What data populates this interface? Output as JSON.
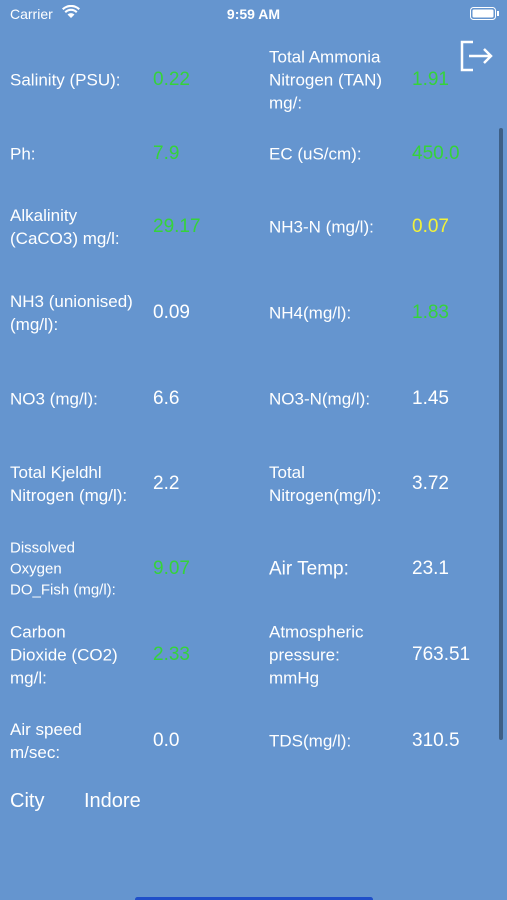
{
  "status_bar": {
    "carrier": "Carrier",
    "time": "9:59 AM"
  },
  "rows": [
    [
      {
        "label": [
          "Salinity (PSU):"
        ],
        "value": "0.22",
        "color": "#35d33a"
      },
      {
        "label": [
          "Total Ammonia",
          "Nitrogen (TAN)",
          "mg/:"
        ],
        "value": "1.91",
        "color": "#35d33a"
      }
    ],
    [
      {
        "label": [
          "Ph:"
        ],
        "value": "7.9",
        "color": "#35d33a"
      },
      {
        "label": [
          "EC (uS/cm):"
        ],
        "value": "450.0",
        "color": "#35d33a"
      }
    ],
    [
      {
        "label": [
          "Alkalinity",
          "(CaCO3) mg/l:"
        ],
        "value": "29.17",
        "color": "#35d33a"
      },
      {
        "label": [
          "NH3-N (mg/l):"
        ],
        "value": "0.07",
        "color": "#f2f23a"
      }
    ],
    [
      {
        "label": [
          "NH3 (unionised)",
          "(mg/l):"
        ],
        "value": "0.09",
        "color": "#ffffff"
      },
      {
        "label": [
          "NH4(mg/l):"
        ],
        "value": "1.83",
        "color": "#35d33a"
      }
    ],
    [
      {
        "label": [
          "NO3 (mg/l):"
        ],
        "value": "6.6",
        "color": "#ffffff"
      },
      {
        "label": [
          "NO3-N(mg/l):"
        ],
        "value": "1.45",
        "color": "#ffffff"
      }
    ],
    [
      {
        "label": [
          "Total Kjeldhl",
          "Nitrogen (mg/l):"
        ],
        "value": "2.2",
        "color": "#ffffff"
      },
      {
        "label": [
          "Total",
          "Nitrogen(mg/l):"
        ],
        "value": "3.72",
        "color": "#ffffff"
      }
    ],
    [
      {
        "label": [
          "Dissolved",
          "Oxygen",
          "DO_Fish (mg/l):"
        ],
        "value": "9.07",
        "color": "#35d33a"
      },
      {
        "label": [
          "Air Temp:"
        ],
        "value": "23.1",
        "color": "#ffffff"
      }
    ],
    [
      {
        "label": [
          "Carbon",
          "Dioxide (CO2)",
          "mg/l:"
        ],
        "value": "2.33",
        "color": "#35d33a"
      },
      {
        "label": [
          "Atmospheric",
          "pressure:",
          "mmHg"
        ],
        "value": "763.51",
        "color": "#ffffff"
      }
    ],
    [
      {
        "label": [
          "Air speed",
          "m/sec:"
        ],
        "value": "0.0",
        "color": "#ffffff"
      },
      {
        "label": [
          "TDS(mg/l):"
        ],
        "value": "310.5",
        "color": "#ffffff"
      }
    ]
  ],
  "city": {
    "label": "City",
    "value": "Indore"
  }
}
